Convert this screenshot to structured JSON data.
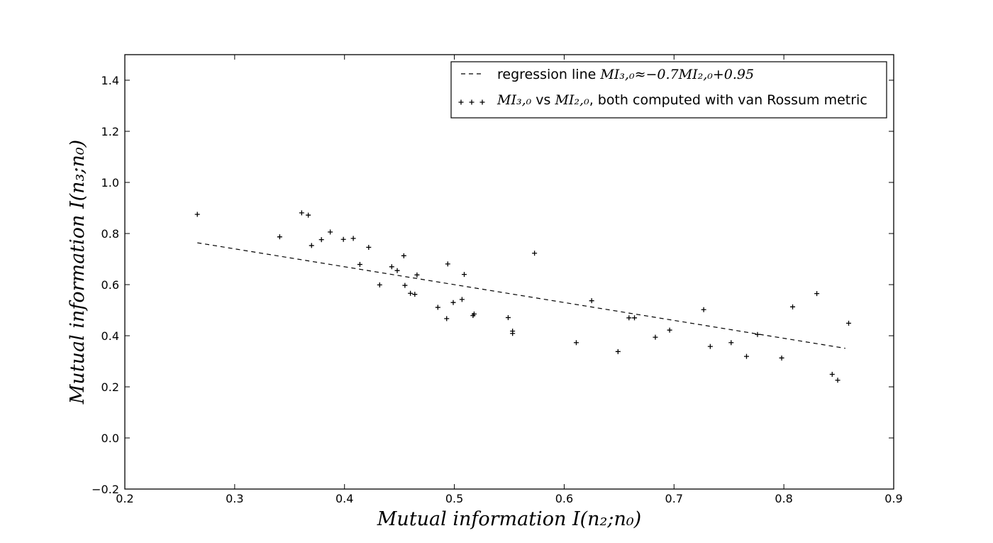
{
  "chart_data": {
    "type": "scatter",
    "xlabel": "Mutual information I(n₂;n₀)",
    "ylabel": "Mutual information I(n₃;n₀)",
    "xlim": [
      0.2,
      0.9
    ],
    "ylim": [
      -0.2,
      1.5
    ],
    "x_ticks": [
      "0.2",
      "0.3",
      "0.4",
      "0.5",
      "0.6",
      "0.7",
      "0.8",
      "0.9"
    ],
    "y_ticks": [
      "−0.2",
      "0.0",
      "0.2",
      "0.4",
      "0.6",
      "0.8",
      "1.0",
      "1.2",
      "1.4"
    ],
    "grid": false,
    "legend_position": "top-right",
    "regression_line": {
      "name": "regression line MI₃,₀≈−0.7MI₂,₀+0.95",
      "label_prefix": "regression line ",
      "label_math": "MI₃,₀≈−0.7MI₂,₀+0.95",
      "slope": -0.7,
      "intercept": 0.95,
      "x_range": [
        0.266,
        0.856
      ],
      "style": "dashed",
      "color": "#000000"
    },
    "series": [
      {
        "name": "MI₃,₀ vs MI₂,₀, both computed with van Rossum metric",
        "label_math_a": "MI₃,₀",
        "label_mid": " vs ",
        "label_math_b": "MI₂,₀",
        "label_suffix": ", both computed with van Rossum metric",
        "marker": "+",
        "color": "#000000",
        "points": [
          [
            0.266,
            0.875
          ],
          [
            0.341,
            0.787
          ],
          [
            0.361,
            0.881
          ],
          [
            0.367,
            0.872
          ],
          [
            0.37,
            0.753
          ],
          [
            0.379,
            0.776
          ],
          [
            0.387,
            0.806
          ],
          [
            0.399,
            0.777
          ],
          [
            0.408,
            0.781
          ],
          [
            0.414,
            0.679
          ],
          [
            0.422,
            0.746
          ],
          [
            0.432,
            0.599
          ],
          [
            0.443,
            0.67
          ],
          [
            0.448,
            0.655
          ],
          [
            0.454,
            0.713
          ],
          [
            0.455,
            0.597
          ],
          [
            0.46,
            0.566
          ],
          [
            0.464,
            0.562
          ],
          [
            0.466,
            0.638
          ],
          [
            0.485,
            0.511
          ],
          [
            0.493,
            0.467
          ],
          [
            0.494,
            0.681
          ],
          [
            0.499,
            0.53
          ],
          [
            0.507,
            0.542
          ],
          [
            0.509,
            0.64
          ],
          [
            0.517,
            0.479
          ],
          [
            0.518,
            0.485
          ],
          [
            0.549,
            0.471
          ],
          [
            0.553,
            0.409
          ],
          [
            0.553,
            0.418
          ],
          [
            0.573,
            0.723
          ],
          [
            0.611,
            0.373
          ],
          [
            0.625,
            0.537
          ],
          [
            0.649,
            0.338
          ],
          [
            0.659,
            0.47
          ],
          [
            0.664,
            0.47
          ],
          [
            0.683,
            0.394
          ],
          [
            0.696,
            0.422
          ],
          [
            0.727,
            0.502
          ],
          [
            0.733,
            0.358
          ],
          [
            0.752,
            0.373
          ],
          [
            0.766,
            0.319
          ],
          [
            0.776,
            0.405
          ],
          [
            0.798,
            0.313
          ],
          [
            0.808,
            0.513
          ],
          [
            0.83,
            0.565
          ],
          [
            0.844,
            0.249
          ],
          [
            0.849,
            0.226
          ],
          [
            0.859,
            0.449
          ]
        ]
      }
    ]
  }
}
